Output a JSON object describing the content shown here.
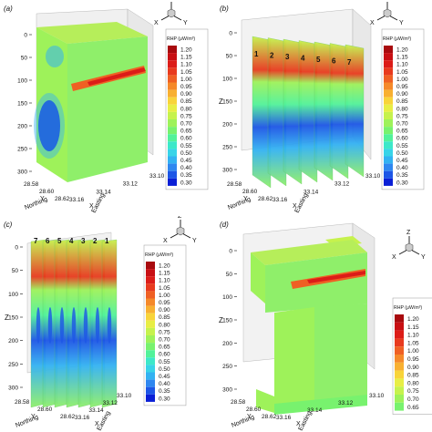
{
  "chart_data": [
    {
      "type": "heatmap",
      "panel_label": "(a)",
      "z_ticks": [
        "0",
        "50",
        "100",
        "150",
        "200",
        "250",
        "300"
      ],
      "northing_ticks": [
        "28.58",
        "28.60",
        "28.62"
      ],
      "easting_ticks": [
        "33.16",
        "33.14",
        "33.12",
        "33.10"
      ],
      "northing_label": "Northing",
      "northing_axis": "Y",
      "easting_label": "Easting",
      "easting_axis": "X",
      "axis_label_z": "",
      "slice_labels": [],
      "legend_title": "RHP (μW/m³)",
      "legend_values": [
        "1.20",
        "1.15",
        "1.10",
        "1.05",
        "1.00",
        "0.95",
        "0.90",
        "0.85",
        "0.80",
        "0.75",
        "0.70",
        "0.65",
        "0.60",
        "0.55",
        "0.50",
        "0.45",
        "0.40",
        "0.35",
        "0.30"
      ]
    },
    {
      "type": "heatmap",
      "panel_label": "(b)",
      "z_ticks": [
        "0",
        "50",
        "100",
        "150",
        "200",
        "250",
        "300"
      ],
      "northing_ticks": [
        "28.58",
        "28.60",
        "28.62"
      ],
      "easting_ticks": [
        "33.16",
        "33.14",
        "33.12",
        "33.10"
      ],
      "northing_label": "Northing",
      "northing_axis": "Y",
      "easting_label": "Easting",
      "easting_axis": "X",
      "axis_label_z": "Z",
      "slice_labels": [
        "1",
        "2",
        "3",
        "4",
        "5",
        "6",
        "7"
      ],
      "legend_title": "RHP (μW/m³)",
      "legend_values": [
        "1.20",
        "1.15",
        "1.10",
        "1.05",
        "1.00",
        "0.95",
        "0.90",
        "0.85",
        "0.80",
        "0.75",
        "0.70",
        "0.65",
        "0.60",
        "0.55",
        "0.50",
        "0.45",
        "0.40",
        "0.35",
        "0.30"
      ]
    },
    {
      "type": "heatmap",
      "panel_label": "(c)",
      "z_ticks": [
        "0",
        "50",
        "100",
        "150",
        "200",
        "250",
        "300"
      ],
      "northing_ticks": [
        "28.58",
        "28.60",
        "28.62"
      ],
      "easting_ticks": [
        "33.16",
        "33.14",
        "33.12",
        "33.10"
      ],
      "northing_label": "Northing",
      "northing_axis": "Y",
      "easting_label": "Easting",
      "easting_axis": "X",
      "axis_label_z": "Z",
      "slice_labels": [
        "7",
        "6",
        "5",
        "4",
        "3",
        "2",
        "1"
      ],
      "legend_title": "RHP (μW/m³)",
      "legend_values": [
        "1.20",
        "1.15",
        "1.10",
        "1.05",
        "1.00",
        "0.95",
        "0.90",
        "0.85",
        "0.80",
        "0.75",
        "0.70",
        "0.65",
        "0.60",
        "0.55",
        "0.50",
        "0.45",
        "0.40",
        "0.35",
        "0.30"
      ]
    },
    {
      "type": "heatmap",
      "panel_label": "(d)",
      "z_ticks": [
        "0",
        "50",
        "100",
        "150",
        "200",
        "250",
        "300"
      ],
      "northing_ticks": [
        "28.58",
        "28.60",
        "28.62"
      ],
      "easting_ticks": [
        "33.16",
        "33.14",
        "33.12",
        "33.10"
      ],
      "northing_label": "Northing",
      "northing_axis": "Y",
      "easting_label": "Easting",
      "easting_axis": "X",
      "axis_label_z": "Z",
      "slice_labels": [],
      "legend_title": "RHP (μW/m³)",
      "legend_values": [
        "1.20",
        "1.15",
        "1.10",
        "1.05",
        "1.00",
        "0.95",
        "0.90",
        "0.85",
        "0.80",
        "0.75",
        "0.70",
        "0.65"
      ]
    }
  ],
  "triad": {
    "z": "Z",
    "x": "X",
    "y": "Y"
  },
  "palette": [
    "#0a1fd6",
    "#1d56e6",
    "#2f87f0",
    "#33b2f2",
    "#38d4e8",
    "#3de8c9",
    "#52f29a",
    "#78f26e",
    "#9ef25a",
    "#c6f24d",
    "#e8ee45",
    "#f8d43a",
    "#f8b031",
    "#f5892a",
    "#ef6024",
    "#e83a1e",
    "#dc1c18",
    "#c80f13",
    "#a80a0e"
  ],
  "colors": {
    "body": "#8fef6a",
    "hot": "#e83a1e",
    "cold": "#0a1fd6"
  }
}
